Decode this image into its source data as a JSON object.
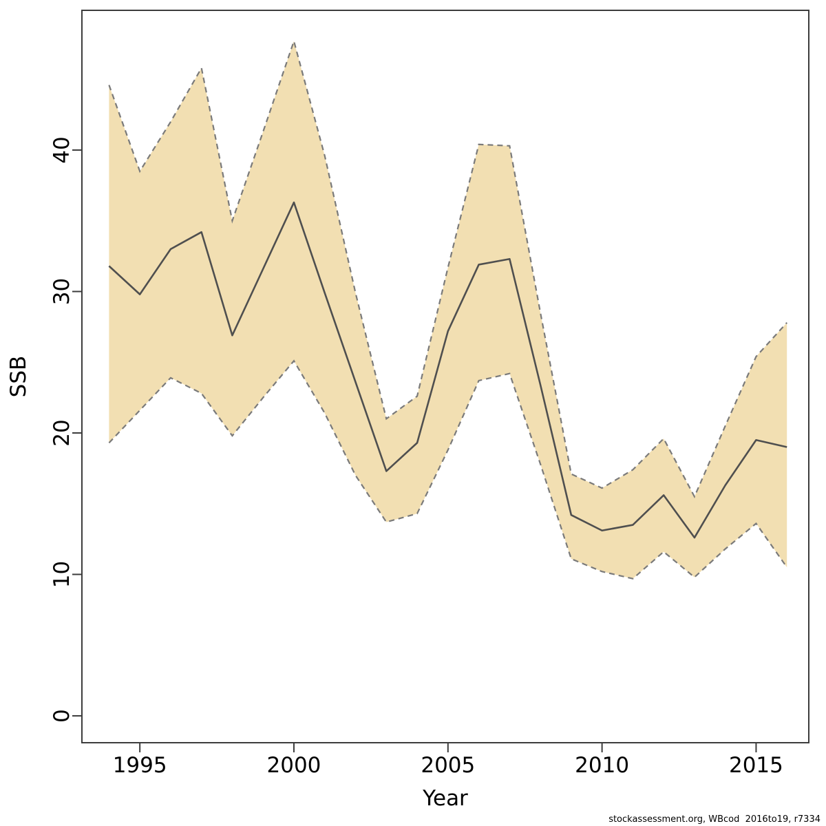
{
  "chart_data": {
    "type": "line",
    "title": "",
    "xlabel": "Year",
    "ylabel": "SSB",
    "x": [
      1994,
      1995,
      1996,
      1997,
      1998,
      1999,
      2000,
      2001,
      2002,
      2003,
      2004,
      2005,
      2006,
      2007,
      2008,
      2009,
      2010,
      2011,
      2012,
      2013,
      2014,
      2015,
      2016
    ],
    "series": [
      {
        "name": "SSB central estimate",
        "role": "central",
        "values": [
          31.8,
          29.8,
          33.0,
          34.2,
          26.9,
          31.6,
          36.3,
          29.9,
          23.6,
          17.3,
          19.3,
          27.2,
          31.9,
          32.3,
          23.4,
          14.2,
          13.1,
          13.5,
          15.6,
          12.6,
          16.3,
          19.5,
          19.0
        ]
      },
      {
        "name": "upper confidence bound",
        "role": "upper",
        "values": [
          44.6,
          38.5,
          42.0,
          45.8,
          35.0,
          41.3,
          47.7,
          39.6,
          29.9,
          21.0,
          22.6,
          31.7,
          40.4,
          40.3,
          28.5,
          17.1,
          16.1,
          17.4,
          19.6,
          15.5,
          20.5,
          25.4,
          27.8
        ]
      },
      {
        "name": "lower confidence bound",
        "role": "lower",
        "values": [
          19.3,
          21.6,
          23.9,
          22.8,
          19.8,
          22.5,
          25.1,
          21.4,
          17.0,
          13.7,
          14.3,
          18.8,
          23.7,
          24.2,
          17.8,
          11.1,
          10.2,
          9.7,
          11.6,
          9.8,
          11.8,
          13.6,
          10.5
        ]
      }
    ],
    "band": {
      "between": [
        "upper confidence bound",
        "lower confidence bound"
      ],
      "style": "shaded with dashed edges"
    },
    "xticks": [
      1995,
      2000,
      2005,
      2010,
      2015
    ],
    "yticks": [
      0,
      10,
      20,
      30,
      40
    ],
    "xlim": [
      1993.12,
      2016.71
    ],
    "ylim": [
      -1.9,
      49.88
    ],
    "grid": false,
    "legend": "none",
    "colors": {
      "band_fill": "#f2dfb2",
      "ci_line": "#7a7a7a",
      "central_line": "#4f4f4f",
      "axis": "#3c3c3c",
      "text": "#000000"
    }
  },
  "footer": {
    "text": "stockassessment.org, WBcod  2016to19, r7334"
  }
}
